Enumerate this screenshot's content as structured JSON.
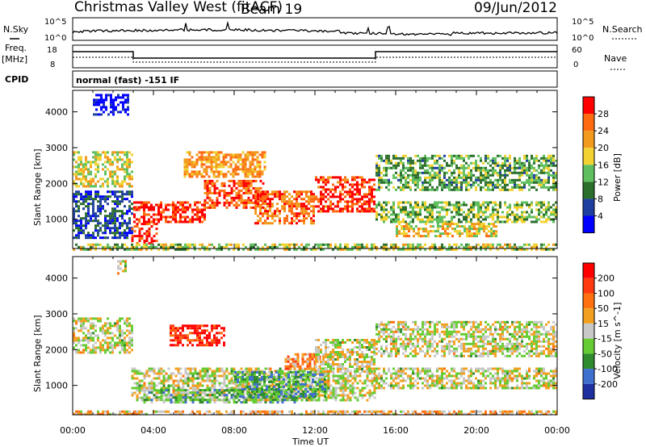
{
  "header": {
    "title": "Christmas Valley West (fitACF)",
    "beam": "Beam 19",
    "date": "09/Jun/2012"
  },
  "strips": {
    "nsky_label": "N.Sky",
    "nsearch_label": "N.Search",
    "freq_label": "Freq.",
    "freq_unit": "[MHz]",
    "nave_label": "Nave",
    "cpid_label": "CPID",
    "cpid_value": "normal (fast) -151 IF",
    "noise_ticks_left": [
      "10^5",
      "10^0"
    ],
    "noise_ticks_right": [
      "10^5",
      "10^0"
    ],
    "freq_ticks": [
      "18",
      "8"
    ],
    "nave_ticks": [
      "60",
      "0"
    ]
  },
  "chart_data": [
    {
      "type": "heatmap",
      "name": "Power",
      "ylabel": "Slant Range [km]",
      "xlabel": "Time UT",
      "xlim": [
        0,
        24
      ],
      "ylim": [
        180,
        4600
      ],
      "x_ticks": [
        "00:00",
        "04:00",
        "08:00",
        "12:00",
        "16:00",
        "20:00",
        "00:00"
      ],
      "y_ticks": [
        1000,
        2000,
        3000,
        4000
      ],
      "colorbar": {
        "label": "Power [dB]",
        "ticks": [
          "28",
          "24",
          "20",
          "16",
          "12",
          "8",
          "4"
        ],
        "colors": [
          "#0000ff",
          "#1e3fa0",
          "#2c6e2c",
          "#5fbf5f",
          "#f2d230",
          "#f29a1c",
          "#ff6a10",
          "#ff0000"
        ]
      },
      "patches": [
        {
          "t0": 0.0,
          "t1": 2.9,
          "r0": 1900,
          "r1": 2900,
          "level": 0.55
        },
        {
          "t0": 0.0,
          "t1": 2.9,
          "r0": 500,
          "r1": 1800,
          "level": 0.2
        },
        {
          "t0": 1.0,
          "t1": 2.8,
          "r0": 3900,
          "r1": 4500,
          "level": 0.05
        },
        {
          "t0": 2.9,
          "t1": 4.2,
          "r0": 350,
          "r1": 900,
          "level": 0.9
        },
        {
          "t0": 3.0,
          "t1": 6.5,
          "r0": 900,
          "r1": 1500,
          "level": 0.92
        },
        {
          "t0": 6.5,
          "t1": 9.5,
          "r0": 1300,
          "r1": 2100,
          "level": 0.85
        },
        {
          "t0": 9.0,
          "t1": 12.0,
          "r0": 900,
          "r1": 1800,
          "level": 0.8
        },
        {
          "t0": 12.0,
          "t1": 15.0,
          "r0": 1200,
          "r1": 2200,
          "level": 0.9
        },
        {
          "t0": 5.5,
          "t1": 9.5,
          "r0": 2200,
          "r1": 2900,
          "level": 0.7
        },
        {
          "t0": 15.0,
          "t1": 24.0,
          "r0": 900,
          "r1": 1500,
          "level": 0.45
        },
        {
          "t0": 15.0,
          "t1": 24.0,
          "r0": 1800,
          "r1": 2800,
          "level": 0.4
        },
        {
          "t0": 16.0,
          "t1": 21.0,
          "r0": 500,
          "r1": 900,
          "level": 0.6
        },
        {
          "t0": 0.0,
          "t1": 24.0,
          "r0": 180,
          "r1": 320,
          "level": 0.5
        }
      ]
    },
    {
      "type": "heatmap",
      "name": "Velocity",
      "ylabel": "Slant Range [km]",
      "xlabel": "Time UT",
      "xlim": [
        0,
        24
      ],
      "ylim": [
        180,
        4600
      ],
      "x_ticks": [
        "00:00",
        "04:00",
        "08:00",
        "12:00",
        "16:00",
        "20:00",
        "00:00"
      ],
      "y_ticks": [
        1000,
        2000,
        3000,
        4000
      ],
      "colorbar": {
        "label": "Velocity [m s^-1]",
        "ticks": [
          "200",
          "100",
          "50",
          "15",
          "-15",
          "-50",
          "-100",
          "-200"
        ],
        "colors": [
          "#1e2fa0",
          "#3f6fcf",
          "#2e8b2e",
          "#66cc33",
          "#c8c8c8",
          "#f2a020",
          "#ff7010",
          "#ff3a10",
          "#ff0000"
        ]
      },
      "patches": [
        {
          "t0": 0.0,
          "t1": 2.9,
          "r0": 1900,
          "r1": 2900,
          "level": 0.5
        },
        {
          "t0": 2.9,
          "t1": 15.0,
          "r0": 600,
          "r1": 1500,
          "level": 0.5
        },
        {
          "t0": 3.5,
          "t1": 11.0,
          "r0": 500,
          "r1": 900,
          "level": 0.35
        },
        {
          "t0": 8.0,
          "t1": 12.5,
          "r0": 700,
          "r1": 1400,
          "level": 0.3
        },
        {
          "t0": 10.5,
          "t1": 12.2,
          "r0": 1450,
          "r1": 1900,
          "level": 0.7
        },
        {
          "t0": 12.0,
          "t1": 15.0,
          "r0": 1400,
          "r1": 2300,
          "level": 0.5
        },
        {
          "t0": 4.8,
          "t1": 7.5,
          "r0": 2100,
          "r1": 2700,
          "level": 0.9
        },
        {
          "t0": 15.0,
          "t1": 24.0,
          "r0": 900,
          "r1": 1500,
          "level": 0.5
        },
        {
          "t0": 15.0,
          "t1": 24.0,
          "r0": 1800,
          "r1": 2800,
          "level": 0.5
        },
        {
          "t0": 2.2,
          "t1": 2.6,
          "r0": 4100,
          "r1": 4500,
          "level": 0.5
        },
        {
          "t0": 0.0,
          "t1": 24.0,
          "r0": 180,
          "r1": 300,
          "level": 0.6
        }
      ]
    }
  ]
}
